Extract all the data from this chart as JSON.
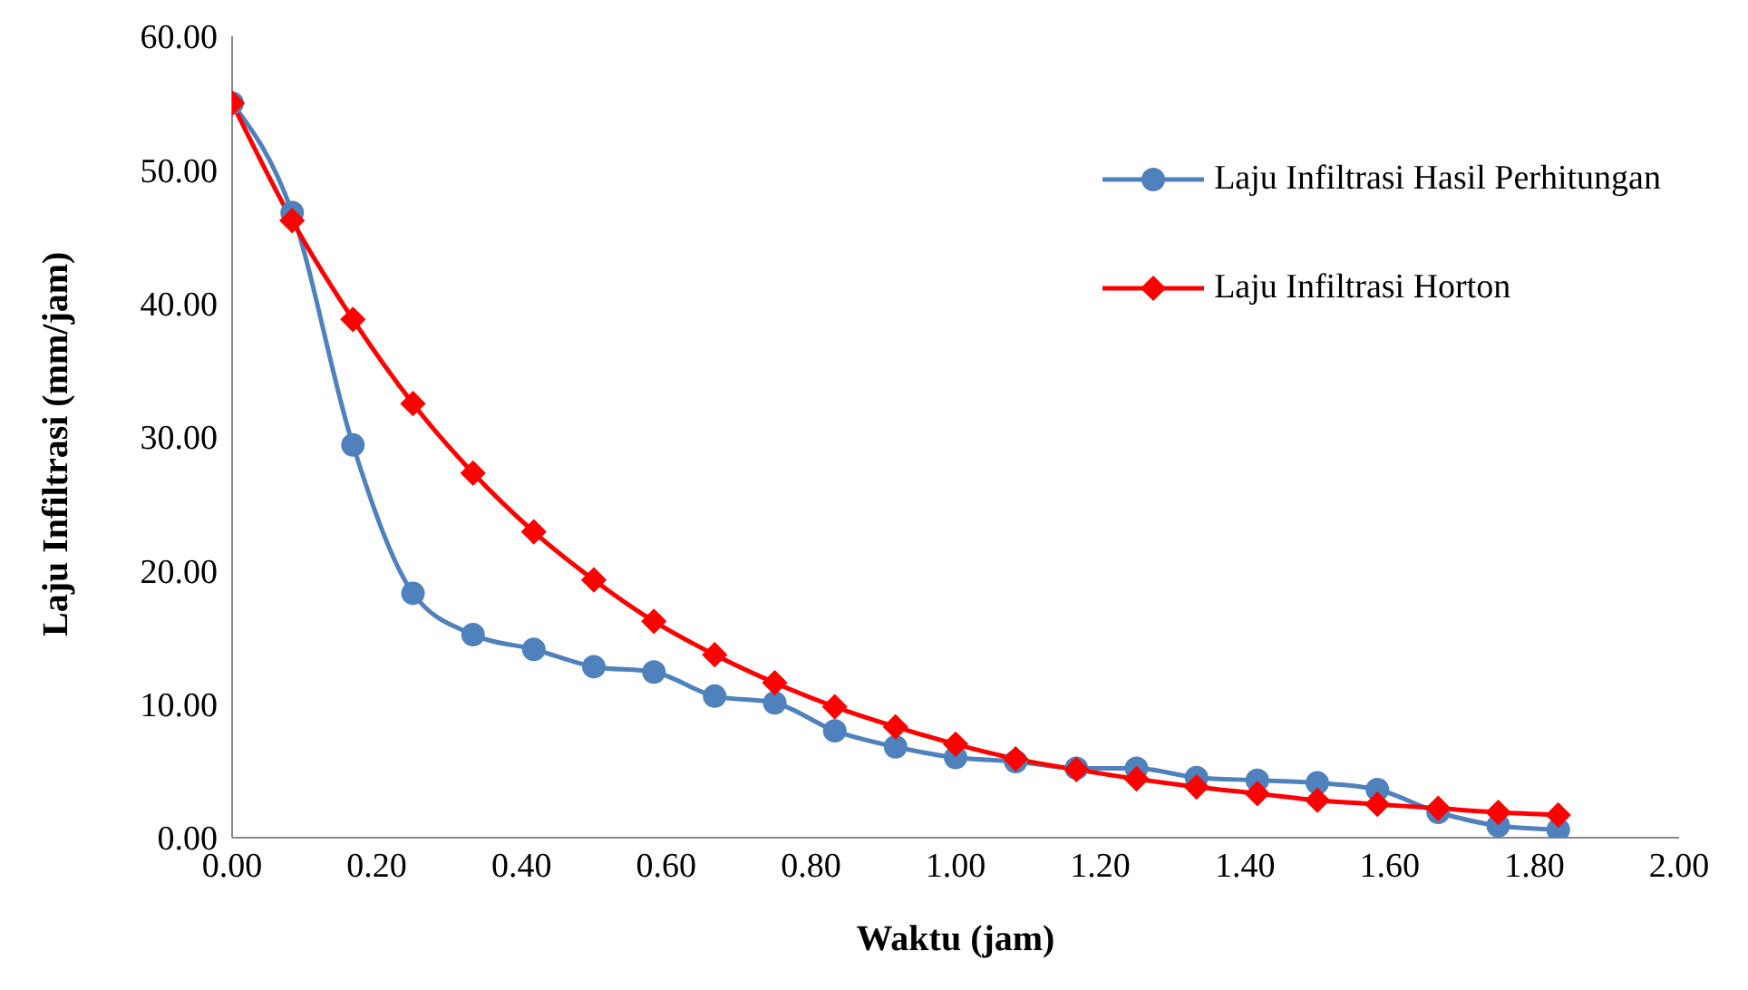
{
  "chart_data": {
    "type": "line",
    "xlabel": "Waktu (jam)",
    "ylabel": "Laju Infiltrasi (mm/jam)",
    "x": [
      0,
      0.083,
      0.167,
      0.25,
      0.333,
      0.417,
      0.5,
      0.583,
      0.667,
      0.75,
      0.833,
      0.917,
      1,
      1.083,
      1.167,
      1.25,
      1.333,
      1.417,
      1.5,
      1.583,
      1.667,
      1.75,
      1.833
    ],
    "series": [
      {
        "name": "Laju Infiltrasi Hasil Perhitungan",
        "color": "#4f81bd",
        "marker": "circle",
        "values": [
          55,
          46.8,
          29.4,
          18.3,
          15.2,
          14.1,
          12.8,
          12.4,
          10.6,
          10.1,
          8.0,
          6.8,
          6.0,
          5.7,
          5.2,
          5.2,
          4.5,
          4.3,
          4.1,
          3.6,
          1.9,
          0.9,
          0.6
        ]
      },
      {
        "name": "Laju Infiltrasi Horton",
        "color": "#ff0000",
        "marker": "diamond",
        "values": [
          55,
          46.2,
          38.8,
          32.5,
          27.3,
          22.9,
          19.3,
          16.2,
          13.7,
          11.6,
          9.8,
          8.3,
          7.0,
          5.9,
          5.1,
          4.4,
          3.8,
          3.3,
          2.8,
          2.5,
          2.2,
          1.9,
          1.7
        ]
      }
    ],
    "xlim": [
      0,
      2
    ],
    "xticks": [
      {
        "value": 0,
        "label": "0.00"
      },
      {
        "value": 0.2,
        "label": "0.20"
      },
      {
        "value": 0.4,
        "label": "0.40"
      },
      {
        "value": 0.6,
        "label": "0.60"
      },
      {
        "value": 0.8,
        "label": "0.80"
      },
      {
        "value": 1,
        "label": "1.00"
      },
      {
        "value": 1.2,
        "label": "1.20"
      },
      {
        "value": 1.4,
        "label": "1.40"
      },
      {
        "value": 1.6,
        "label": "1.60"
      },
      {
        "value": 1.8,
        "label": "1.80"
      },
      {
        "value": 2,
        "label": "2.00"
      }
    ],
    "ylim": [
      0,
      60
    ],
    "yticks": [
      {
        "value": 0,
        "label": "0.00"
      },
      {
        "value": 10,
        "label": "10.00"
      },
      {
        "value": 20,
        "label": "20.00"
      },
      {
        "value": 30,
        "label": "30.00"
      },
      {
        "value": 40,
        "label": "40.00"
      },
      {
        "value": 50,
        "label": "50.00"
      },
      {
        "value": 60,
        "label": "60.00"
      }
    ],
    "legend": "top right",
    "grid": false
  }
}
